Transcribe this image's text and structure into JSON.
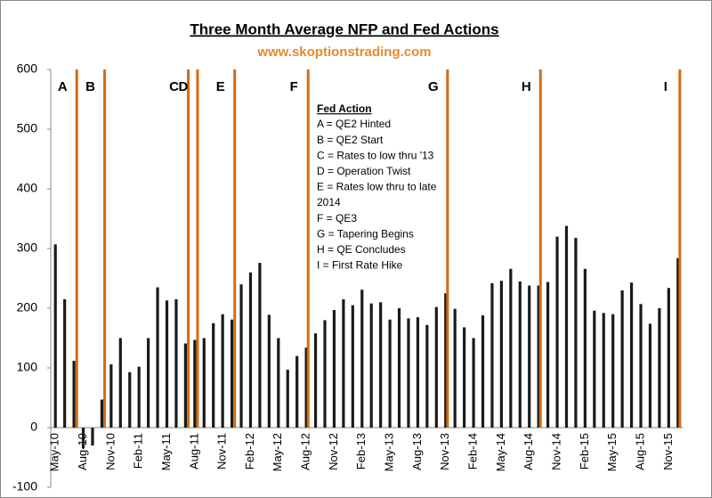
{
  "chart_data": {
    "type": "bar",
    "title": "Three Month Average NFP and Fed Actions",
    "subtitle": "www.skoptionstrading.com",
    "categories": [
      "May-10",
      null,
      null,
      "Aug-10",
      null,
      null,
      "Nov-10",
      null,
      null,
      "Feb-11",
      null,
      null,
      "May-11",
      null,
      null,
      "Aug-11",
      null,
      null,
      "Nov-11",
      null,
      null,
      "Feb-12",
      null,
      null,
      "May-12",
      null,
      null,
      "Aug-12",
      null,
      null,
      "Nov-12",
      null,
      null,
      "Feb-13",
      null,
      null,
      "May-13",
      null,
      null,
      "Aug-13",
      null,
      null,
      "Nov-13",
      null,
      null,
      "Feb-14",
      null,
      null,
      "May-14",
      null,
      null,
      "Aug-14",
      null,
      null,
      "Nov-14",
      null,
      null,
      "Feb-15",
      null,
      null,
      "May-15",
      null,
      null,
      "Aug-15",
      null,
      null,
      "Nov-15",
      null
    ],
    "values": [
      307,
      215,
      112,
      -35,
      -30,
      47,
      106,
      150,
      93,
      102,
      150,
      235,
      213,
      215,
      141,
      147,
      150,
      175,
      190,
      181,
      240,
      260,
      276,
      189,
      150,
      97,
      120,
      134,
      158,
      180,
      197,
      215,
      205,
      231,
      208,
      210,
      181,
      200,
      183,
      185,
      172,
      202,
      225,
      199,
      168,
      150,
      188,
      242,
      246,
      266,
      245,
      238,
      238,
      244,
      320,
      338,
      318,
      266,
      196,
      192,
      190,
      230,
      243,
      207,
      174,
      200,
      234,
      284
    ],
    "color": "#1a1a1a",
    "ylim": [
      -100,
      600
    ],
    "yticks": [
      -100,
      0,
      100,
      200,
      300,
      400,
      500,
      600
    ],
    "events": [
      {
        "label": "A",
        "x": 2.3
      },
      {
        "label": "B",
        "x": 5.3
      },
      {
        "label": "C",
        "x": 14.3
      },
      {
        "label": "D",
        "x": 15.3
      },
      {
        "label": "E",
        "x": 19.3
      },
      {
        "label": "F",
        "x": 27.2
      },
      {
        "label": "G",
        "x": 42.2
      },
      {
        "label": "H",
        "x": 52.2
      },
      {
        "label": "I",
        "x": 67.2
      }
    ],
    "event_color": "#d36b12",
    "notes_title": "Fed Action",
    "notes": [
      "A = QE2 Hinted",
      "B = QE2 Start",
      "C = Rates to low thru '13",
      "D = Operation Twist",
      "E = Rates low thru to late",
      "2014",
      "F = QE3",
      "G = Tapering Begins",
      "H = QE Concludes",
      "I = First Rate Hike"
    ]
  }
}
